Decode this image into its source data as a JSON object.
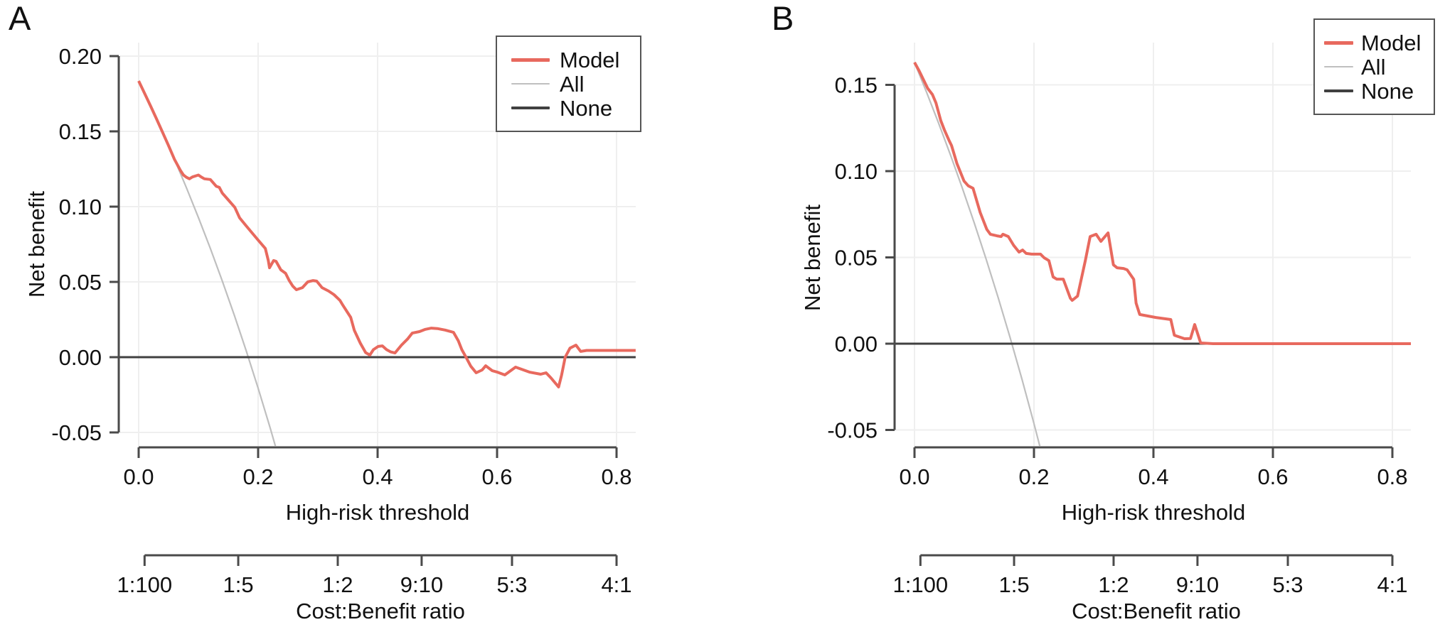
{
  "figure_title": "",
  "colors": {
    "model": "#E8695E",
    "all": "#BFBFBF",
    "none": "#404040",
    "grid": "#EFEFEF",
    "axis": "#4a4a4a",
    "text": "#111111",
    "background": "#ffffff"
  },
  "chart_data": [
    {
      "type": "line",
      "panel_label": "A",
      "xlabel": "High-risk threshold",
      "ylabel": "Net benefit",
      "secondary_xlabel": "Cost:Benefit ratio",
      "xlim": [
        -0.032,
        0.832
      ],
      "ylim": [
        -0.059,
        0.209
      ],
      "grid": true,
      "legend_position": "top-right",
      "legend_entries": [
        "Model",
        "All",
        "None"
      ],
      "x_ticks": {
        "values": [
          0.0,
          0.2,
          0.4,
          0.6,
          0.8
        ],
        "labels": [
          "0.0",
          "0.2",
          "0.4",
          "0.6",
          "0.8"
        ]
      },
      "y_ticks": {
        "values": [
          0.2,
          0.15,
          0.1,
          0.05,
          0.0,
          -0.05
        ],
        "labels": [
          "0.20",
          "0.15",
          "0.10",
          "0.05",
          "0.00",
          "-0.05"
        ]
      },
      "cost_benefit_ticks": {
        "values": [
          0.0099,
          0.1667,
          0.3333,
          0.4737,
          0.625,
          0.8
        ],
        "labels": [
          "1:100",
          "1:5",
          "1:2",
          "9:10",
          "5:3",
          "4:1"
        ]
      },
      "series": [
        {
          "name": "Model",
          "color": "#E8695E",
          "width": 4,
          "points": [
            [
              0.0,
              0.1835
            ],
            [
              0.01,
              0.1752
            ],
            [
              0.02,
              0.1668
            ],
            [
              0.03,
              0.1582
            ],
            [
              0.04,
              0.1494
            ],
            [
              0.05,
              0.1405
            ],
            [
              0.06,
              0.1313
            ],
            [
              0.07,
              0.124
            ],
            [
              0.075,
              0.121
            ],
            [
              0.08,
              0.1195
            ],
            [
              0.085,
              0.1185
            ],
            [
              0.09,
              0.1197
            ],
            [
              0.1,
              0.121
            ],
            [
              0.105,
              0.1196
            ],
            [
              0.11,
              0.1185
            ],
            [
              0.12,
              0.118
            ],
            [
              0.13,
              0.1135
            ],
            [
              0.135,
              0.1128
            ],
            [
              0.14,
              0.109
            ],
            [
              0.15,
              0.1045
            ],
            [
              0.155,
              0.1022
            ],
            [
              0.161,
              0.0995
            ],
            [
              0.169,
              0.0925
            ],
            [
              0.179,
              0.0877
            ],
            [
              0.19,
              0.0825
            ],
            [
              0.2,
              0.0778
            ],
            [
              0.212,
              0.0722
            ],
            [
              0.217,
              0.0642
            ],
            [
              0.219,
              0.0594
            ],
            [
              0.226,
              0.0642
            ],
            [
              0.23,
              0.0637
            ],
            [
              0.238,
              0.058
            ],
            [
              0.246,
              0.0557
            ],
            [
              0.252,
              0.0509
            ],
            [
              0.258,
              0.0472
            ],
            [
              0.264,
              0.0448
            ],
            [
              0.274,
              0.0462
            ],
            [
              0.283,
              0.05
            ],
            [
              0.292,
              0.0509
            ],
            [
              0.298,
              0.0505
            ],
            [
              0.307,
              0.0462
            ],
            [
              0.318,
              0.0439
            ],
            [
              0.327,
              0.0415
            ],
            [
              0.337,
              0.0377
            ],
            [
              0.342,
              0.0344
            ],
            [
              0.355,
              0.0264
            ],
            [
              0.361,
              0.0179
            ],
            [
              0.371,
              0.0094
            ],
            [
              0.38,
              0.003
            ],
            [
              0.387,
              0.0014
            ],
            [
              0.393,
              0.005
            ],
            [
              0.401,
              0.0071
            ],
            [
              0.408,
              0.0075
            ],
            [
              0.415,
              0.005
            ],
            [
              0.422,
              0.0035
            ],
            [
              0.429,
              0.0028
            ],
            [
              0.44,
              0.008
            ],
            [
              0.45,
              0.012
            ],
            [
              0.458,
              0.016
            ],
            [
              0.47,
              0.017
            ],
            [
              0.48,
              0.0185
            ],
            [
              0.49,
              0.0193
            ],
            [
              0.5,
              0.019
            ],
            [
              0.513,
              0.018
            ],
            [
              0.527,
              0.0165
            ],
            [
              0.535,
              0.011
            ],
            [
              0.541,
              0.005
            ],
            [
              0.548,
              0.0
            ],
            [
              0.556,
              -0.006
            ],
            [
              0.565,
              -0.0104
            ],
            [
              0.575,
              -0.0085
            ],
            [
              0.581,
              -0.0057
            ],
            [
              0.592,
              -0.009
            ],
            [
              0.601,
              -0.01
            ],
            [
              0.613,
              -0.0118
            ],
            [
              0.621,
              -0.0095
            ],
            [
              0.631,
              -0.0066
            ],
            [
              0.641,
              -0.008
            ],
            [
              0.655,
              -0.01
            ],
            [
              0.673,
              -0.0113
            ],
            [
              0.682,
              -0.0104
            ],
            [
              0.69,
              -0.0137
            ],
            [
              0.7,
              -0.0184
            ],
            [
              0.703,
              -0.0198
            ],
            [
              0.708,
              -0.012
            ],
            [
              0.714,
              0.0
            ],
            [
              0.722,
              0.006
            ],
            [
              0.732,
              0.008
            ],
            [
              0.74,
              0.0038
            ],
            [
              0.75,
              0.0045
            ],
            [
              0.832,
              0.0045
            ]
          ]
        },
        {
          "name": "All",
          "color": "#BFBFBF",
          "width": 2.2,
          "points": [
            [
              0.0,
              0.1835
            ],
            [
              0.02,
              0.1668
            ],
            [
              0.04,
              0.1495
            ],
            [
              0.06,
              0.1314
            ],
            [
              0.08,
              0.1125
            ],
            [
              0.1,
              0.0928
            ],
            [
              0.12,
              0.0722
            ],
            [
              0.14,
              0.0506
            ],
            [
              0.16,
              0.028
            ],
            [
              0.18,
              0.0043
            ],
            [
              0.2,
              -0.0206
            ],
            [
              0.22,
              -0.0468
            ],
            [
              0.24,
              -0.0744
            ]
          ]
        },
        {
          "name": "None",
          "color": "#404040",
          "width": 3,
          "points": [
            [
              -0.032,
              0.0
            ],
            [
              0.832,
              0.0
            ]
          ]
        }
      ]
    },
    {
      "type": "line",
      "panel_label": "B",
      "xlabel": "High-risk threshold",
      "ylabel": "Net benefit",
      "secondary_xlabel": "Cost:Benefit ratio",
      "xlim": [
        -0.032,
        0.832
      ],
      "ylim": [
        -0.059,
        0.174
      ],
      "grid": true,
      "legend_position": "top-right",
      "legend_entries": [
        "Model",
        "All",
        "None"
      ],
      "x_ticks": {
        "values": [
          0.0,
          0.2,
          0.4,
          0.6,
          0.8
        ],
        "labels": [
          "0.0",
          "0.2",
          "0.4",
          "0.6",
          "0.8"
        ]
      },
      "y_ticks": {
        "values": [
          0.15,
          0.1,
          0.05,
          0.0,
          -0.05
        ],
        "labels": [
          "0.15",
          "0.10",
          "0.05",
          "0.00",
          "-0.05"
        ]
      },
      "cost_benefit_ticks": {
        "values": [
          0.0099,
          0.1667,
          0.3333,
          0.4737,
          0.625,
          0.8
        ],
        "labels": [
          "1:100",
          "1:5",
          "1:2",
          "9:10",
          "5:3",
          "4:1"
        ]
      },
      "series": [
        {
          "name": "Model",
          "color": "#E8695E",
          "width": 4,
          "points": [
            [
              0.0,
              0.163
            ],
            [
              0.008,
              0.158
            ],
            [
              0.015,
              0.153
            ],
            [
              0.022,
              0.148
            ],
            [
              0.03,
              0.1444
            ],
            [
              0.036,
              0.1395
            ],
            [
              0.044,
              0.1292
            ],
            [
              0.05,
              0.1239
            ],
            [
              0.058,
              0.1177
            ],
            [
              0.062,
              0.1148
            ],
            [
              0.071,
              0.1045
            ],
            [
              0.083,
              0.0942
            ],
            [
              0.09,
              0.0915
            ],
            [
              0.098,
              0.0901
            ],
            [
              0.11,
              0.076
            ],
            [
              0.121,
              0.0663
            ],
            [
              0.127,
              0.0634
            ],
            [
              0.138,
              0.0625
            ],
            [
              0.145,
              0.0621
            ],
            [
              0.148,
              0.0634
            ],
            [
              0.157,
              0.0621
            ],
            [
              0.166,
              0.057
            ],
            [
              0.175,
              0.0531
            ],
            [
              0.181,
              0.0543
            ],
            [
              0.187,
              0.0523
            ],
            [
              0.196,
              0.0519
            ],
            [
              0.211,
              0.0519
            ],
            [
              0.217,
              0.0498
            ],
            [
              0.225,
              0.0481
            ],
            [
              0.232,
              0.0387
            ],
            [
              0.238,
              0.0374
            ],
            [
              0.249,
              0.0374
            ],
            [
              0.261,
              0.0263
            ],
            [
              0.264,
              0.0251
            ],
            [
              0.273,
              0.0276
            ],
            [
              0.28,
              0.0387
            ],
            [
              0.286,
              0.0481
            ],
            [
              0.294,
              0.0621
            ],
            [
              0.304,
              0.0634
            ],
            [
              0.312,
              0.0593
            ],
            [
              0.324,
              0.0642
            ],
            [
              0.333,
              0.0457
            ],
            [
              0.339,
              0.044
            ],
            [
              0.35,
              0.0436
            ],
            [
              0.356,
              0.0428
            ],
            [
              0.367,
              0.0373
            ],
            [
              0.371,
              0.0235
            ],
            [
              0.377,
              0.0169
            ],
            [
              0.404,
              0.0152
            ],
            [
              0.429,
              0.014
            ],
            [
              0.435,
              0.0049
            ],
            [
              0.452,
              0.0029
            ],
            [
              0.462,
              0.003
            ],
            [
              0.469,
              0.0111
            ],
            [
              0.479,
              0.0004
            ],
            [
              0.5,
              0.0
            ],
            [
              0.832,
              0.0
            ]
          ]
        },
        {
          "name": "All",
          "color": "#BFBFBF",
          "width": 2.2,
          "points": [
            [
              0.0,
              0.163
            ],
            [
              0.02,
              0.1459
            ],
            [
              0.04,
              0.1281
            ],
            [
              0.06,
              0.1096
            ],
            [
              0.08,
              0.0902
            ],
            [
              0.1,
              0.07
            ],
            [
              0.12,
              0.0489
            ],
            [
              0.14,
              0.0268
            ],
            [
              0.16,
              0.0036
            ],
            [
              0.18,
              -0.0207
            ],
            [
              0.2,
              -0.0463
            ],
            [
              0.22,
              -0.0731
            ]
          ]
        },
        {
          "name": "None",
          "color": "#404040",
          "width": 3,
          "points": [
            [
              -0.032,
              0.0
            ],
            [
              0.832,
              0.0
            ]
          ]
        }
      ]
    }
  ]
}
